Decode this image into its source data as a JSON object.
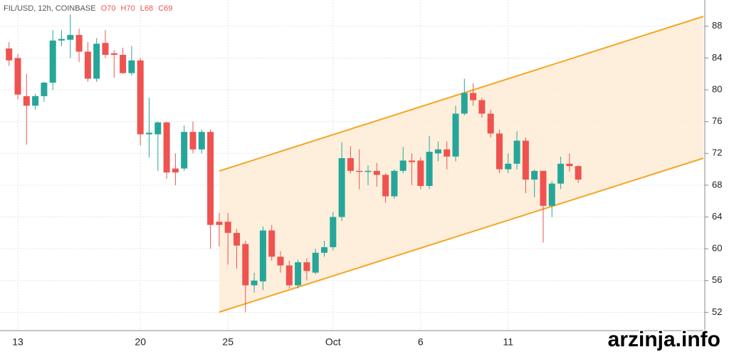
{
  "header": "FIL/USD, 12h, COINBASE",
  "ohlc": [
    "O70",
    "H70",
    "L68",
    "C69"
  ],
  "watermark": "arzinja.info",
  "chart_data": {
    "type": "candlestick",
    "categories": [
      null,
      "13",
      null,
      null,
      null,
      null,
      null,
      null,
      null,
      null,
      null,
      null,
      null,
      null,
      null,
      "20",
      null,
      null,
      null,
      null,
      null,
      null,
      null,
      null,
      null,
      "25",
      null,
      null,
      null,
      null,
      null,
      null,
      null,
      null,
      null,
      null,
      null,
      "Oct",
      null,
      null,
      null,
      null,
      null,
      null,
      null,
      null,
      null,
      "6",
      null,
      null,
      null,
      null,
      null,
      null,
      null,
      null,
      null,
      "11",
      null,
      null,
      null,
      null,
      null,
      null,
      null,
      null
    ],
    "open": [
      85.2,
      84,
      79.2,
      78,
      79.2,
      80.9,
      86.2,
      86.3,
      86.9,
      84.8,
      81.4,
      85.9,
      84.6,
      84.4,
      82.1,
      83.7,
      74.4,
      74.4,
      75.9,
      70.1,
      70.1,
      74.7,
      72.5,
      74.7,
      63.4,
      63.4,
      62,
      60.6,
      55.4,
      55.9,
      62.3,
      59,
      57.9,
      55.4,
      58.3,
      57,
      59.5,
      60.2,
      64,
      71.4,
      69.8,
      69.7,
      69.8,
      69.3,
      66.6,
      69.8,
      71.1,
      71.1,
      67.9,
      72,
      72.5,
      71.6,
      77,
      79.6,
      78.7,
      77,
      74.5,
      70,
      70.7,
      73.6,
      68.7,
      69.8,
      65.4,
      68.2,
      70.7,
      70.4
    ],
    "high": [
      86,
      84.5,
      82,
      79.5,
      81,
      87.5,
      87.5,
      89.5,
      87.7,
      86,
      86.5,
      87.5,
      85,
      85.3,
      85.5,
      84,
      79,
      76,
      76,
      72,
      75.5,
      76,
      75,
      75,
      64.5,
      64.5,
      62.5,
      61,
      57,
      62.8,
      63,
      59.7,
      58.5,
      58.6,
      58.8,
      60,
      61,
      64.6,
      73.4,
      72.9,
      72.5,
      70.5,
      70.8,
      69.5,
      70,
      72.8,
      72,
      71.5,
      74.2,
      73.5,
      73.5,
      78,
      81.4,
      80.8,
      79,
      77.5,
      75,
      72,
      74.8,
      74,
      70,
      69.8,
      68.5,
      71.6,
      72,
      70.5
    ],
    "low": [
      83,
      78.8,
      73.1,
      77.5,
      78.5,
      80,
      85.5,
      84,
      83.5,
      81,
      81,
      84,
      81.5,
      82,
      81.8,
      73,
      71.5,
      69.8,
      68.8,
      68,
      69.8,
      72,
      72,
      60,
      60.3,
      58,
      57.5,
      52,
      54.5,
      54.8,
      58.5,
      57,
      55,
      55,
      56,
      56.8,
      59,
      59.8,
      63.5,
      69.5,
      67.5,
      68,
      67.8,
      65.8,
      66.3,
      69.5,
      68,
      67.5,
      67.5,
      71,
      70,
      71,
      76.8,
      78,
      76.5,
      74,
      69.5,
      69.5,
      70,
      67,
      66.5,
      60.8,
      64,
      67.5,
      69.7,
      68.3
    ],
    "close": [
      83.7,
      79.4,
      78,
      79.2,
      80.9,
      86.2,
      86.4,
      86.9,
      84.8,
      81.4,
      85.8,
      84.4,
      84.4,
      82.1,
      83.7,
      74.4,
      74.6,
      75.9,
      69.6,
      69.6,
      74.7,
      72.5,
      74.7,
      63,
      63,
      62,
      60.4,
      55.4,
      56,
      62.3,
      59,
      57.9,
      55.4,
      58.3,
      57.2,
      59.5,
      60.2,
      64,
      71.4,
      69.8,
      69.7,
      69.8,
      69.3,
      66.6,
      69.8,
      71.1,
      70.9,
      67.9,
      72.2,
      72.5,
      71.6,
      77,
      79.6,
      78.7,
      77,
      74.5,
      70,
      70.7,
      73.6,
      68.7,
      69.8,
      65.4,
      68.2,
      70.7,
      70.4,
      68.7
    ],
    "up_color": "#26a69a",
    "down_color": "#ef5350",
    "ylim": [
      49.7,
      91.3
    ],
    "yticks": [
      52,
      56,
      60,
      64,
      68,
      72,
      76,
      80,
      84,
      88
    ],
    "grid": true
  }
}
